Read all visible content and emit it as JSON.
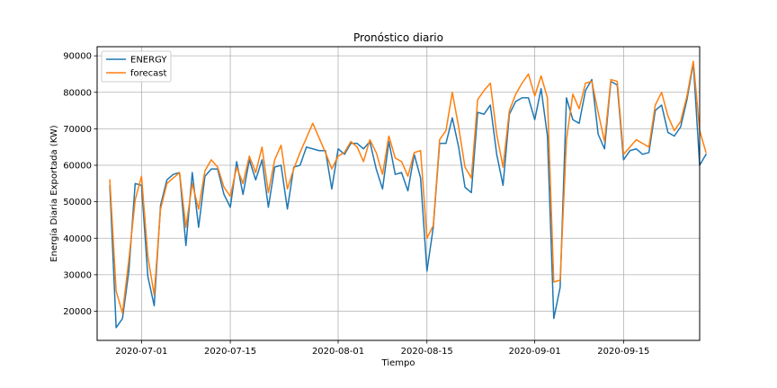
{
  "chart_data": {
    "type": "line",
    "title": "Pronóstico diario",
    "xlabel": "Tiempo",
    "ylabel": "Energía Diaria Exportada (KW)",
    "x_start": "2020-06-26",
    "x_end": "2020-09-23",
    "xlim": [
      "2020-06-24",
      "2020-09-27"
    ],
    "ylim": [
      12000,
      92500
    ],
    "x_ticks": [
      {
        "date": "2020-07-01",
        "label": "2020-07-01"
      },
      {
        "date": "2020-07-15",
        "label": "2020-07-15"
      },
      {
        "date": "2020-08-01",
        "label": "2020-08-01"
      },
      {
        "date": "2020-08-15",
        "label": "2020-08-15"
      },
      {
        "date": "2020-09-01",
        "label": "2020-09-01"
      },
      {
        "date": "2020-09-15",
        "label": "2020-09-15"
      }
    ],
    "y_ticks": [
      {
        "value": 20000,
        "label": "20000"
      },
      {
        "value": 30000,
        "label": "30000"
      },
      {
        "value": 40000,
        "label": "40000"
      },
      {
        "value": 50000,
        "label": "50000"
      },
      {
        "value": 60000,
        "label": "60000"
      },
      {
        "value": 70000,
        "label": "70000"
      },
      {
        "value": 80000,
        "label": "80000"
      },
      {
        "value": 90000,
        "label": "90000"
      }
    ],
    "grid": true,
    "legend": "top-left",
    "series": [
      {
        "name": "ENERGY",
        "color": "#1f77b4",
        "values": [
          54500,
          15500,
          18000,
          31000,
          55000,
          54500,
          29500,
          21500,
          49000,
          56000,
          57500,
          58000,
          38000,
          58000,
          43000,
          57000,
          59000,
          59000,
          52000,
          48500,
          61000,
          52000,
          61500,
          56000,
          61500,
          48500,
          59500,
          60000,
          48000,
          59500,
          60000,
          65000,
          64500,
          64000,
          64000,
          53500,
          64500,
          63000,
          66000,
          66000,
          64500,
          66500,
          59000,
          53500,
          66500,
          57500,
          58000,
          53000,
          63000,
          56500,
          31000,
          43000,
          66000,
          66000,
          73000,
          65000,
          54000,
          52500,
          74500,
          74000,
          76500,
          63000,
          54500,
          74000,
          77500,
          78500,
          78500,
          72500,
          81000,
          68000,
          18000,
          26500,
          78500,
          72500,
          71500,
          80500,
          83500,
          68500,
          64500,
          83000,
          82000,
          61500,
          64000,
          64500,
          63000,
          63500,
          75000,
          76500,
          69000,
          68000,
          70500,
          78000,
          88000,
          60000,
          63000
        ]
      },
      {
        "name": "forecast",
        "color": "#ff7f0e",
        "values": [
          56000,
          25500,
          19500,
          34000,
          50500,
          57000,
          35000,
          24500,
          48000,
          55000,
          56500,
          58000,
          43000,
          55000,
          48000,
          58500,
          61500,
          59500,
          54000,
          51500,
          59500,
          55000,
          62500,
          58000,
          65000,
          52500,
          61500,
          65500,
          53500,
          59000,
          63500,
          67500,
          71500,
          67500,
          63500,
          59000,
          62500,
          63500,
          66500,
          65000,
          61000,
          67000,
          63500,
          57500,
          68000,
          62000,
          61000,
          57000,
          63500,
          64000,
          40000,
          43500,
          67000,
          69500,
          80000,
          70500,
          59500,
          56500,
          78000,
          80500,
          82500,
          68500,
          59500,
          75000,
          79500,
          82500,
          85000,
          79000,
          84500,
          78500,
          28000,
          28500,
          67000,
          79500,
          75500,
          82500,
          83000,
          74500,
          66500,
          83500,
          83000,
          63000,
          65000,
          67000,
          66000,
          65000,
          76500,
          80000,
          73500,
          69500,
          72000,
          79000,
          88500,
          69500,
          63500
        ]
      }
    ]
  }
}
